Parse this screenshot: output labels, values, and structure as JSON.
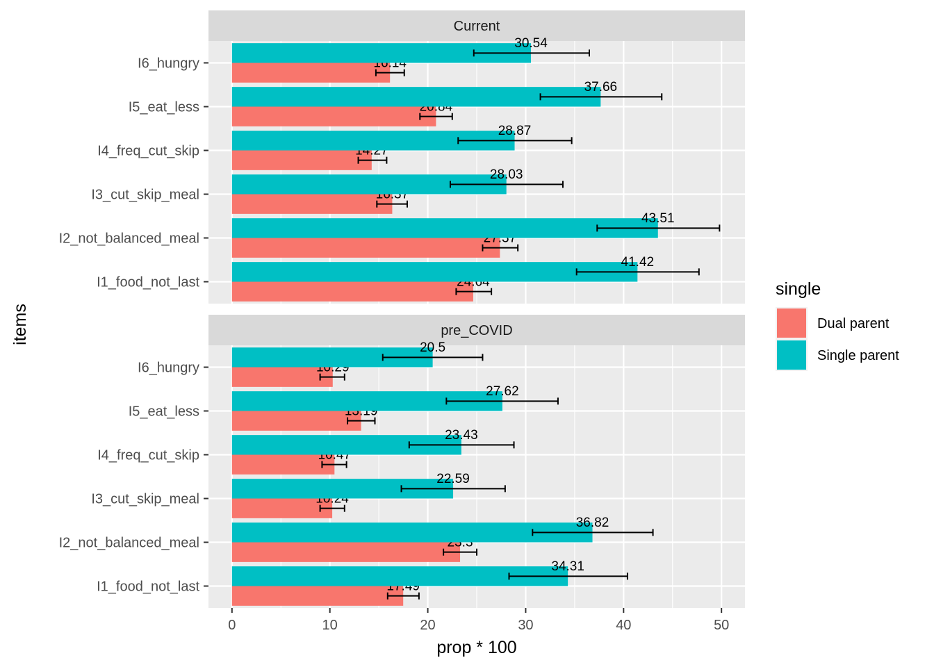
{
  "chart_data": {
    "type": "bar",
    "orientation": "horizontal",
    "xlabel": "prop * 100",
    "ylabel": "items",
    "xlim": [
      -2.4,
      52.4
    ],
    "x_ticks": [
      0,
      10,
      20,
      30,
      40,
      50
    ],
    "categories": [
      "I1_food_not_last",
      "I2_not_balanced_meal",
      "I3_cut_skip_meal",
      "I4_freq_cut_skip",
      "I5_eat_less",
      "I6_hungry"
    ],
    "legend": {
      "title": "single",
      "position": "right"
    },
    "series_meta": [
      {
        "name": "Dual parent",
        "color": "#F8766D"
      },
      {
        "name": "Single parent",
        "color": "#00BFC4"
      }
    ],
    "panels": [
      {
        "strip": "Current",
        "series": [
          {
            "name": "Dual parent",
            "values": [
              24.64,
              27.37,
              16.37,
              14.27,
              20.84,
              16.14
            ],
            "labels": [
              "24.64",
              "27.37",
              "16.37",
              "14.27",
              "20.84",
              "16.14"
            ],
            "err_low": [
              22.9,
              25.6,
              14.8,
              12.9,
              19.2,
              14.7
            ],
            "err_high": [
              26.5,
              29.2,
              17.9,
              15.8,
              22.5,
              17.6
            ]
          },
          {
            "name": "Single parent",
            "values": [
              41.42,
              43.51,
              28.03,
              28.87,
              37.66,
              30.54
            ],
            "labels": [
              "41.42",
              "43.51",
              "28.03",
              "28.87",
              "37.66",
              "30.54"
            ],
            "err_low": [
              35.2,
              37.3,
              22.3,
              23.1,
              31.5,
              24.7
            ],
            "err_high": [
              47.7,
              49.8,
              33.8,
              34.7,
              43.9,
              36.5
            ]
          }
        ]
      },
      {
        "strip": "pre_COVID",
        "series": [
          {
            "name": "Dual parent",
            "values": [
              17.49,
              23.3,
              10.24,
              10.47,
              13.19,
              10.29
            ],
            "labels": [
              "17.49",
              "23.3",
              "10.24",
              "10.47",
              "13.19",
              "10.29"
            ],
            "err_low": [
              15.9,
              21.6,
              9.0,
              9.2,
              11.8,
              9.0
            ],
            "err_high": [
              19.1,
              25.0,
              11.5,
              11.7,
              14.6,
              11.5
            ]
          },
          {
            "name": "Single parent",
            "values": [
              34.31,
              36.82,
              22.59,
              23.43,
              27.62,
              20.5
            ],
            "labels": [
              "34.31",
              "36.82",
              "22.59",
              "23.43",
              "27.62",
              "20.5"
            ],
            "err_low": [
              28.3,
              30.7,
              17.3,
              18.1,
              21.9,
              15.4
            ],
            "err_high": [
              40.4,
              43.0,
              27.9,
              28.8,
              33.3,
              25.6
            ]
          }
        ]
      }
    ]
  }
}
